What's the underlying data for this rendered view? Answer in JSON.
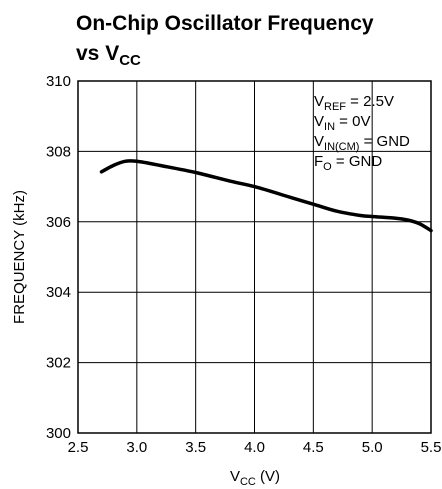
{
  "chart_data": {
    "type": "line",
    "title_line1": "On-Chip Oscillator Frequency",
    "title_line2_main": "vs V",
    "title_line2_sub": "CC",
    "xlabel_main": "V",
    "xlabel_sub": "CC",
    "xlabel_unit": " (V)",
    "ylabel": "FREQUENCY (kHz)",
    "xlim": [
      2.5,
      5.5
    ],
    "ylim": [
      300,
      310
    ],
    "x_ticks": [
      "2.5",
      "3.0",
      "3.5",
      "4.0",
      "4.5",
      "5.0",
      "5.5"
    ],
    "y_ticks": [
      "300",
      "302",
      "304",
      "306",
      "308",
      "310"
    ],
    "grid": true,
    "annotations": [
      {
        "main": "V",
        "sub": "REF",
        "rest": " = 2.5V"
      },
      {
        "main": "V",
        "sub": "IN",
        "rest": " = 0V"
      },
      {
        "main": "V",
        "sub": "IN(CM)",
        "rest": " = GND"
      },
      {
        "main": "F",
        "sub": "O",
        "rest": " = GND"
      }
    ],
    "series": [
      {
        "x": [
          2.7,
          2.8,
          2.9,
          3.0,
          3.2,
          3.5,
          3.8,
          4.0,
          4.3,
          4.5,
          4.7,
          4.9,
          5.0,
          5.2,
          5.3,
          5.4,
          5.5
        ],
        "values": [
          307.42,
          307.6,
          307.72,
          307.72,
          307.6,
          307.4,
          307.15,
          307.0,
          306.7,
          306.5,
          306.3,
          306.18,
          306.15,
          306.1,
          306.05,
          305.95,
          305.75
        ]
      }
    ]
  }
}
